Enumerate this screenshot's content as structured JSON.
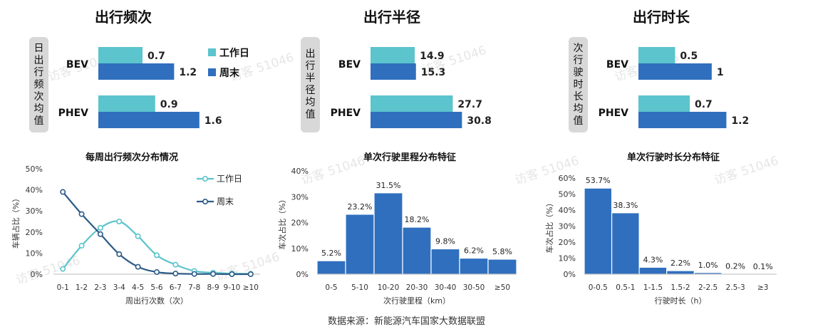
{
  "colors": {
    "workday": "#5bc4cc",
    "weekend": "#2f6fbe",
    "hist": "#2f6fbe",
    "line_weekend": "#2d5b87"
  },
  "top_sections": [
    {
      "title": "出行频次",
      "side_label": "日出行频次均值",
      "chart_data": {
        "type": "bar",
        "orientation": "horizontal",
        "categories": [
          "BEV",
          "PHEV"
        ],
        "series": [
          {
            "name": "工作日",
            "values": [
              0.7,
              0.9
            ]
          },
          {
            "name": "周末",
            "values": [
              1.2,
              1.6
            ]
          }
        ],
        "value_labels": [
          [
            "0.7",
            "1.2"
          ],
          [
            "0.9",
            "1.6"
          ]
        ],
        "xlim": [
          0,
          2.2
        ]
      }
    },
    {
      "title": "出行半径",
      "side_label": "出行半径均值",
      "chart_data": {
        "type": "bar",
        "orientation": "horizontal",
        "categories": [
          "BEV",
          "PHEV"
        ],
        "series": [
          {
            "name": "工作日",
            "values": [
              14.9,
              27.7
            ]
          },
          {
            "name": "周末",
            "values": [
              15.3,
              30.8
            ]
          }
        ],
        "value_labels": [
          [
            "14.9",
            "15.3"
          ],
          [
            "27.7",
            "30.8"
          ]
        ],
        "xlim": [
          0,
          48
        ]
      }
    },
    {
      "title": "出行时长",
      "side_label": "次行驶时长均值",
      "chart_data": {
        "type": "bar",
        "orientation": "horizontal",
        "categories": [
          "BEV",
          "PHEV"
        ],
        "series": [
          {
            "name": "工作日",
            "values": [
              0.5,
              0.7
            ]
          },
          {
            "name": "周末",
            "values": [
              1,
              1.2
            ]
          }
        ],
        "value_labels": [
          [
            "0.5",
            "1"
          ],
          [
            "0.7",
            "1.2"
          ]
        ],
        "xlim": [
          0,
          1.75
        ]
      }
    }
  ],
  "legend": {
    "workday": "工作日",
    "weekend": "周末",
    "placement": "right"
  },
  "bottom_charts": [
    {
      "chart_data": {
        "type": "line",
        "title": "每周出行频次分布情况",
        "categories": [
          "0-1",
          "1-2",
          "2-3",
          "3-4",
          "4-5",
          "5-6",
          "6-7",
          "7-8",
          "8-9",
          "9-10",
          "≥10"
        ],
        "series": [
          {
            "name": "工作日",
            "values": [
              2.5,
              13.5,
              22,
              25,
              18,
              9,
              4.5,
              1.5,
              0.7,
              0.3,
              0.2
            ]
          },
          {
            "name": "周末",
            "values": [
              39,
              28.5,
              19,
              9.5,
              3.5,
              1,
              0.3,
              0.1,
              0.1,
              0,
              0
            ]
          }
        ],
        "xlabel": "周出行次数（次）",
        "ylabel": "车辆占比（%）",
        "ylim": [
          0,
          50
        ],
        "yticks": [
          "0%",
          "10%",
          "20%",
          "30%",
          "40%",
          "50%"
        ],
        "legend_placement": "top-right"
      }
    },
    {
      "chart_data": {
        "type": "bar",
        "title": "单次行驶里程分布特征",
        "categories": [
          "0-5",
          "5-10",
          "10-20",
          "20-30",
          "30-40",
          "30-50",
          "≥50"
        ],
        "values": [
          5.2,
          23.2,
          31.5,
          18.2,
          9.8,
          6.2,
          5.8
        ],
        "value_labels": [
          "5.2%",
          "23.2%",
          "31.5%",
          "18.2%",
          "9.8%",
          "6.2%",
          "5.8%"
        ],
        "xlabel": "次行驶里程（km）",
        "ylabel": "车次占比（%）",
        "ylim": [
          0,
          40
        ],
        "yticks": [
          "0%",
          "10%",
          "20%",
          "30%",
          "40%"
        ]
      }
    },
    {
      "chart_data": {
        "type": "bar",
        "title": "单次行驶时长分布特征",
        "categories": [
          "0-0.5",
          "0.5-1",
          "1-1.5",
          "1.5-2",
          "2-2.5",
          "2.5-3",
          "≥3"
        ],
        "values": [
          53.7,
          38.3,
          4.3,
          2.2,
          1.0,
          0.2,
          0.1
        ],
        "value_labels": [
          "53.7%",
          "38.3%",
          "4.3%",
          "2.2%",
          "1.0%",
          "0.2%",
          "0.1%"
        ],
        "xlabel": "行驶时长（h）",
        "ylabel": "车次占比（%）",
        "ylim": [
          0,
          60
        ],
        "yticks": [
          "0%",
          "10%",
          "20%",
          "30%",
          "40%",
          "50%",
          "60%"
        ]
      }
    }
  ],
  "watermark": "访客 51046",
  "source": "数据来源：新能源汽车国家大数据联盟"
}
